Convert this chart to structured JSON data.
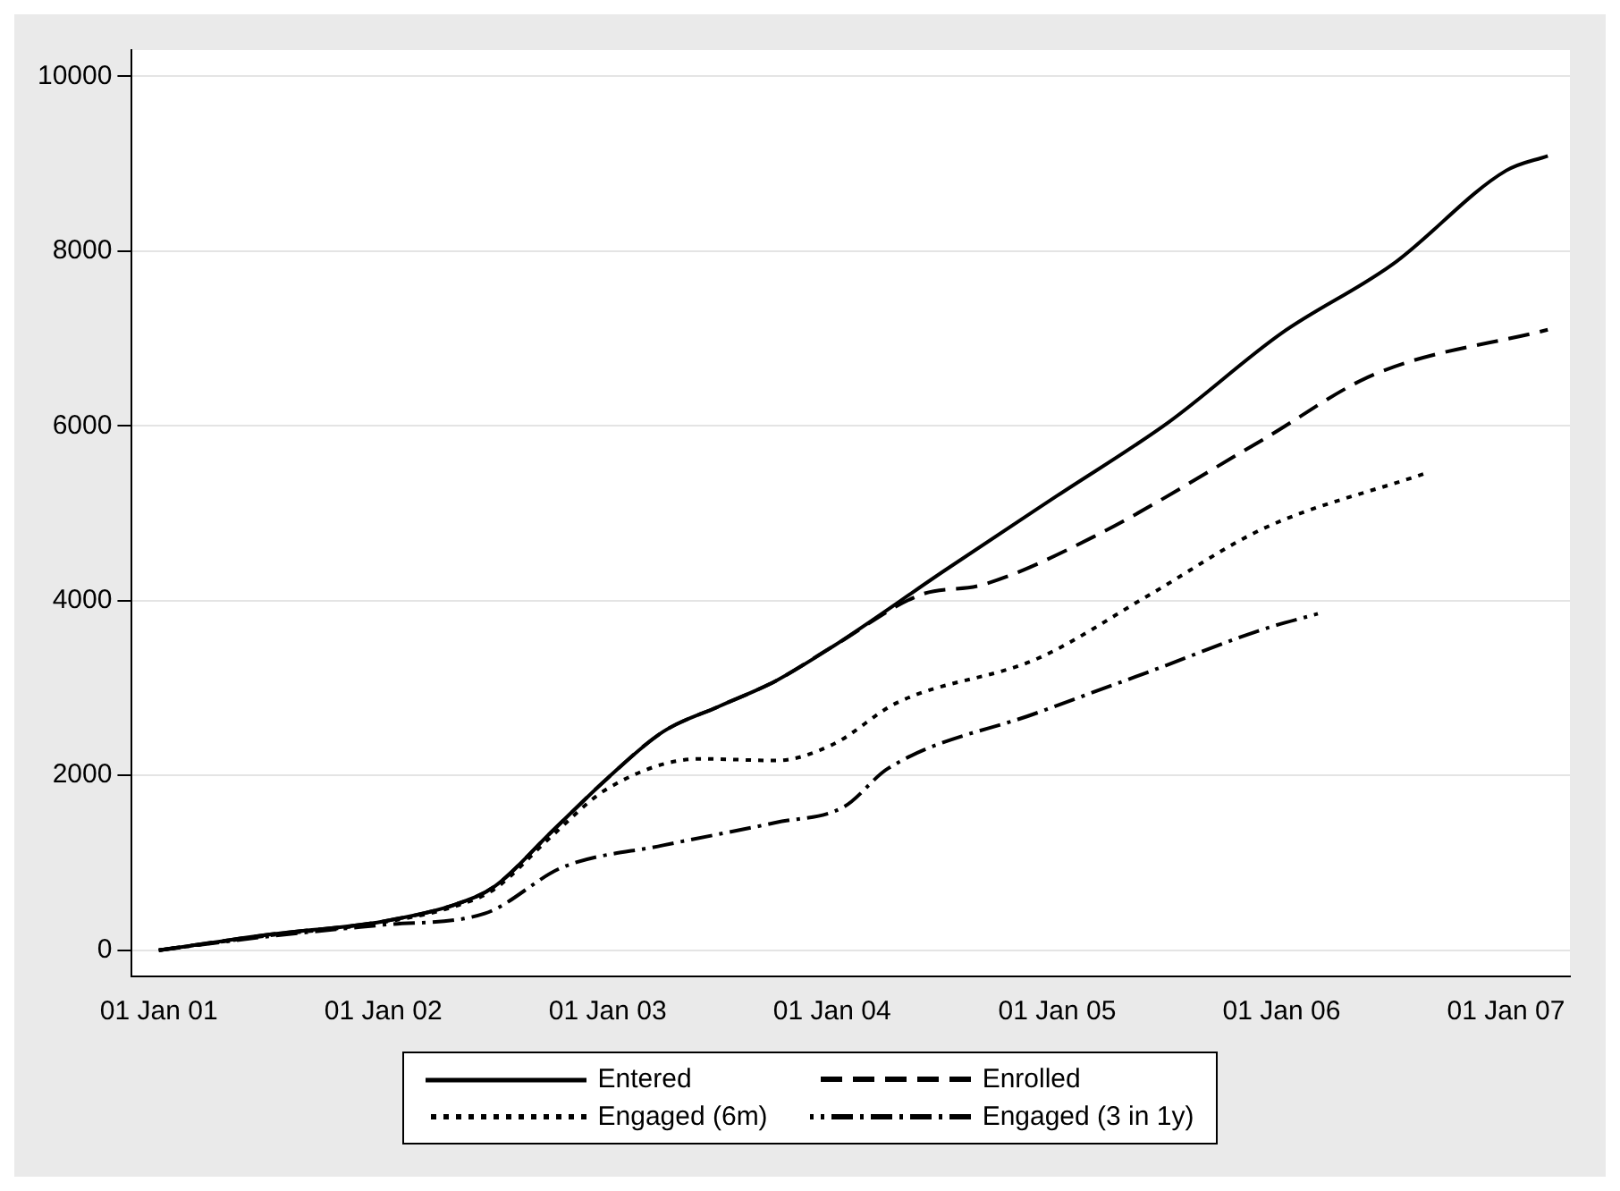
{
  "chart_data": {
    "type": "line",
    "legend": "bottom",
    "grid": "y",
    "xlim": [
      "2000-11-18",
      "2007-04-15"
    ],
    "xticks": [
      {
        "value": "2001-01-01",
        "label": "01 Jan 01"
      },
      {
        "value": "2002-01-01",
        "label": "01 Jan 02"
      },
      {
        "value": "2003-01-01",
        "label": "01 Jan 03"
      },
      {
        "value": "2004-01-01",
        "label": "01 Jan 04"
      },
      {
        "value": "2005-01-01",
        "label": "01 Jan 05"
      },
      {
        "value": "2006-01-01",
        "label": "01 Jan 06"
      },
      {
        "value": "2007-01-01",
        "label": "01 Jan 07"
      }
    ],
    "ylim": [
      -300,
      10300
    ],
    "yticks": [
      0,
      2000,
      4000,
      6000,
      8000,
      10000
    ],
    "series": [
      {
        "name": "Entered",
        "color": "#000000",
        "line_style": "solid",
        "x": [
          "2001-01-01",
          "2001-07-01",
          "2002-01-01",
          "2002-05-01",
          "2002-07-01",
          "2002-10-01",
          "2003-01-01",
          "2003-04-01",
          "2003-07-01",
          "2003-10-01",
          "2004-01-01",
          "2004-07-01",
          "2005-01-01",
          "2005-07-01",
          "2006-01-01",
          "2006-07-01",
          "2007-01-01",
          "2007-03-10"
        ],
        "values": [
          0,
          180,
          330,
          530,
          730,
          1350,
          1970,
          2500,
          2790,
          3080,
          3470,
          4340,
          5200,
          6040,
          7060,
          7850,
          8920,
          9090
        ]
      },
      {
        "name": "Enrolled",
        "color": "#000000",
        "line_style": "dashed",
        "x": [
          "2001-01-01",
          "2001-07-01",
          "2002-01-01",
          "2002-05-01",
          "2002-07-01",
          "2002-10-01",
          "2003-01-01",
          "2003-04-01",
          "2003-07-01",
          "2003-10-01",
          "2004-01-01",
          "2004-05-25",
          "2004-09-01",
          "2005-03-01",
          "2005-12-01",
          "2006-06-01",
          "2007-03-10"
        ],
        "values": [
          0,
          180,
          330,
          530,
          730,
          1350,
          1970,
          2500,
          2790,
          3080,
          3470,
          4070,
          4180,
          4730,
          5840,
          6590,
          7100
        ]
      },
      {
        "name": "Engaged (6m)",
        "color": "#000000",
        "line_style": "dotted",
        "x": [
          "2001-01-01",
          "2001-07-01",
          "2002-01-01",
          "2002-05-01",
          "2002-07-01",
          "2002-10-01",
          "2003-01-01",
          "2003-06-01",
          "2003-10-01",
          "2004-01-01",
          "2004-04-15",
          "2004-12-01",
          "2005-06-01",
          "2005-12-01",
          "2006-08-20"
        ],
        "values": [
          0,
          170,
          320,
          510,
          700,
          1300,
          1850,
          2190,
          2170,
          2350,
          2830,
          3340,
          4070,
          4820,
          5450
        ]
      },
      {
        "name": "Engaged (3 in 1y)",
        "color": "#000000",
        "line_style": "dashdot",
        "x": [
          "2001-01-01",
          "2001-07-01",
          "2002-01-01",
          "2002-06-15",
          "2002-10-20",
          "2003-04-01",
          "2003-10-01",
          "2004-01-20",
          "2004-04-01",
          "2004-12-01",
          "2005-06-01",
          "2005-12-01",
          "2006-03-01"
        ],
        "values": [
          0,
          160,
          290,
          420,
          950,
          1200,
          1460,
          1640,
          2080,
          2720,
          3190,
          3670,
          3850
        ]
      }
    ]
  }
}
